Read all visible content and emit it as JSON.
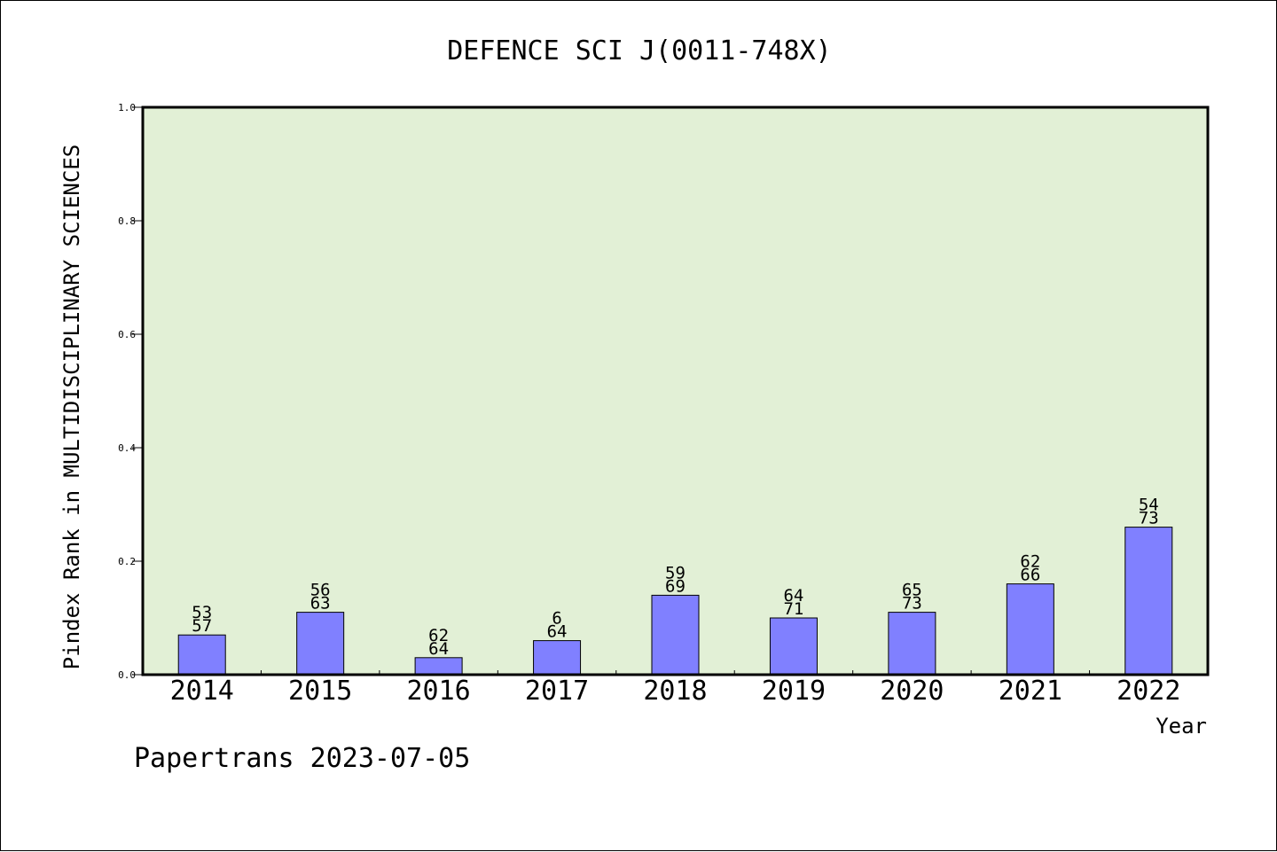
{
  "chart_data": {
    "type": "bar",
    "title": "DEFENCE SCI J(0011-748X)",
    "ylabel": "Pindex Rank in MULTIDISCIPLINARY SCIENCES",
    "xlabel": "Year",
    "ylim": [
      0,
      1.0
    ],
    "yticks": [
      "0.0",
      "0.2",
      "0.4",
      "0.6",
      "0.8",
      "1.0"
    ],
    "categories": [
      "2014",
      "2015",
      "2016",
      "2017",
      "2018",
      "2019",
      "2020",
      "2021",
      "2022"
    ],
    "values": [
      0.07,
      0.11,
      0.03,
      0.06,
      0.14,
      0.1,
      0.11,
      0.16,
      0.26
    ],
    "labels_top": [
      "53",
      "56",
      "62",
      "6",
      "59",
      "64",
      "65",
      "62",
      "54"
    ],
    "labels_bottom": [
      "57",
      "63",
      "64",
      "64",
      "69",
      "71",
      "73",
      "66",
      "73"
    ],
    "bar_color": "#8080ff",
    "plot_bg": "#e2f0d6",
    "grid": false
  },
  "footer": "Papertrans 2023-07-05"
}
